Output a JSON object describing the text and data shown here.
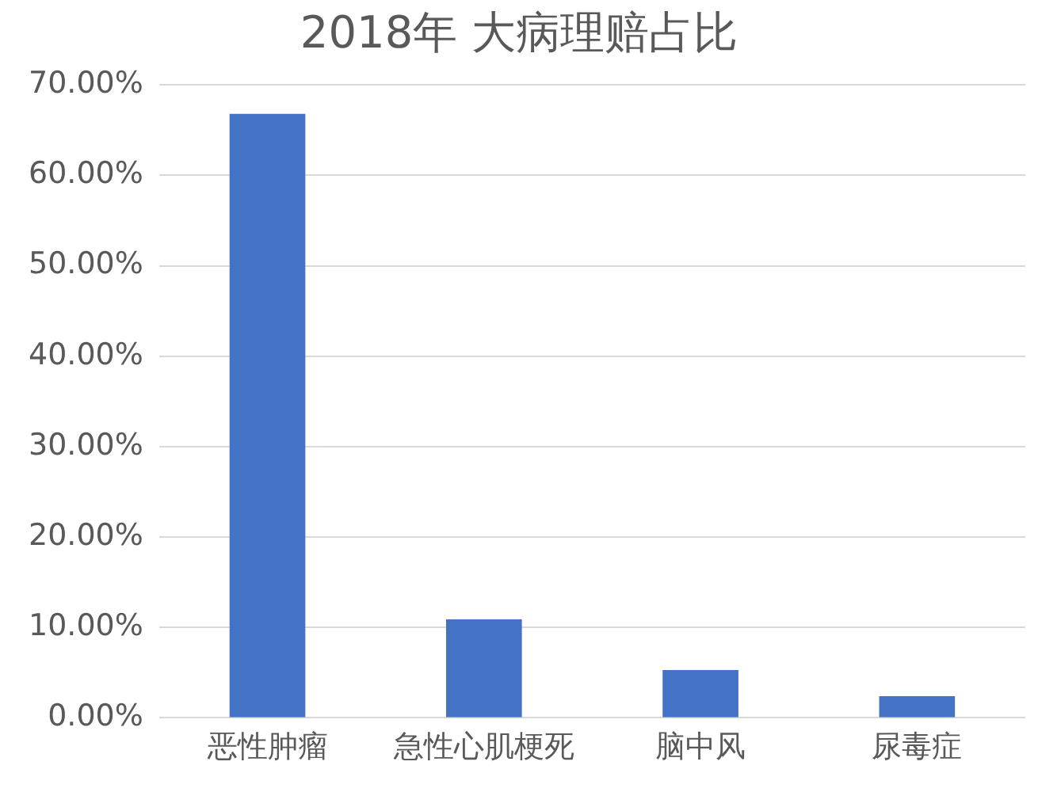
{
  "chart_data": {
    "type": "bar",
    "title": "2018年 大病理赔占比",
    "categories": [
      "恶性肿瘤",
      "急性心肌梗死",
      "脑中风",
      "尿毒症"
    ],
    "values": [
      66.8,
      10.9,
      5.3,
      2.4
    ],
    "color": "#4472c4",
    "ylim": [
      0,
      70
    ],
    "yticks": [
      {
        "value": 0,
        "label": "0.00%"
      },
      {
        "value": 10,
        "label": "10.00%"
      },
      {
        "value": 20,
        "label": "20.00%"
      },
      {
        "value": 30,
        "label": "30.00%"
      },
      {
        "value": 40,
        "label": "40.00%"
      },
      {
        "value": 50,
        "label": "50.00%"
      },
      {
        "value": 60,
        "label": "60.00%"
      },
      {
        "value": 70,
        "label": "70.00%"
      }
    ],
    "grid": "y",
    "legend": false
  }
}
